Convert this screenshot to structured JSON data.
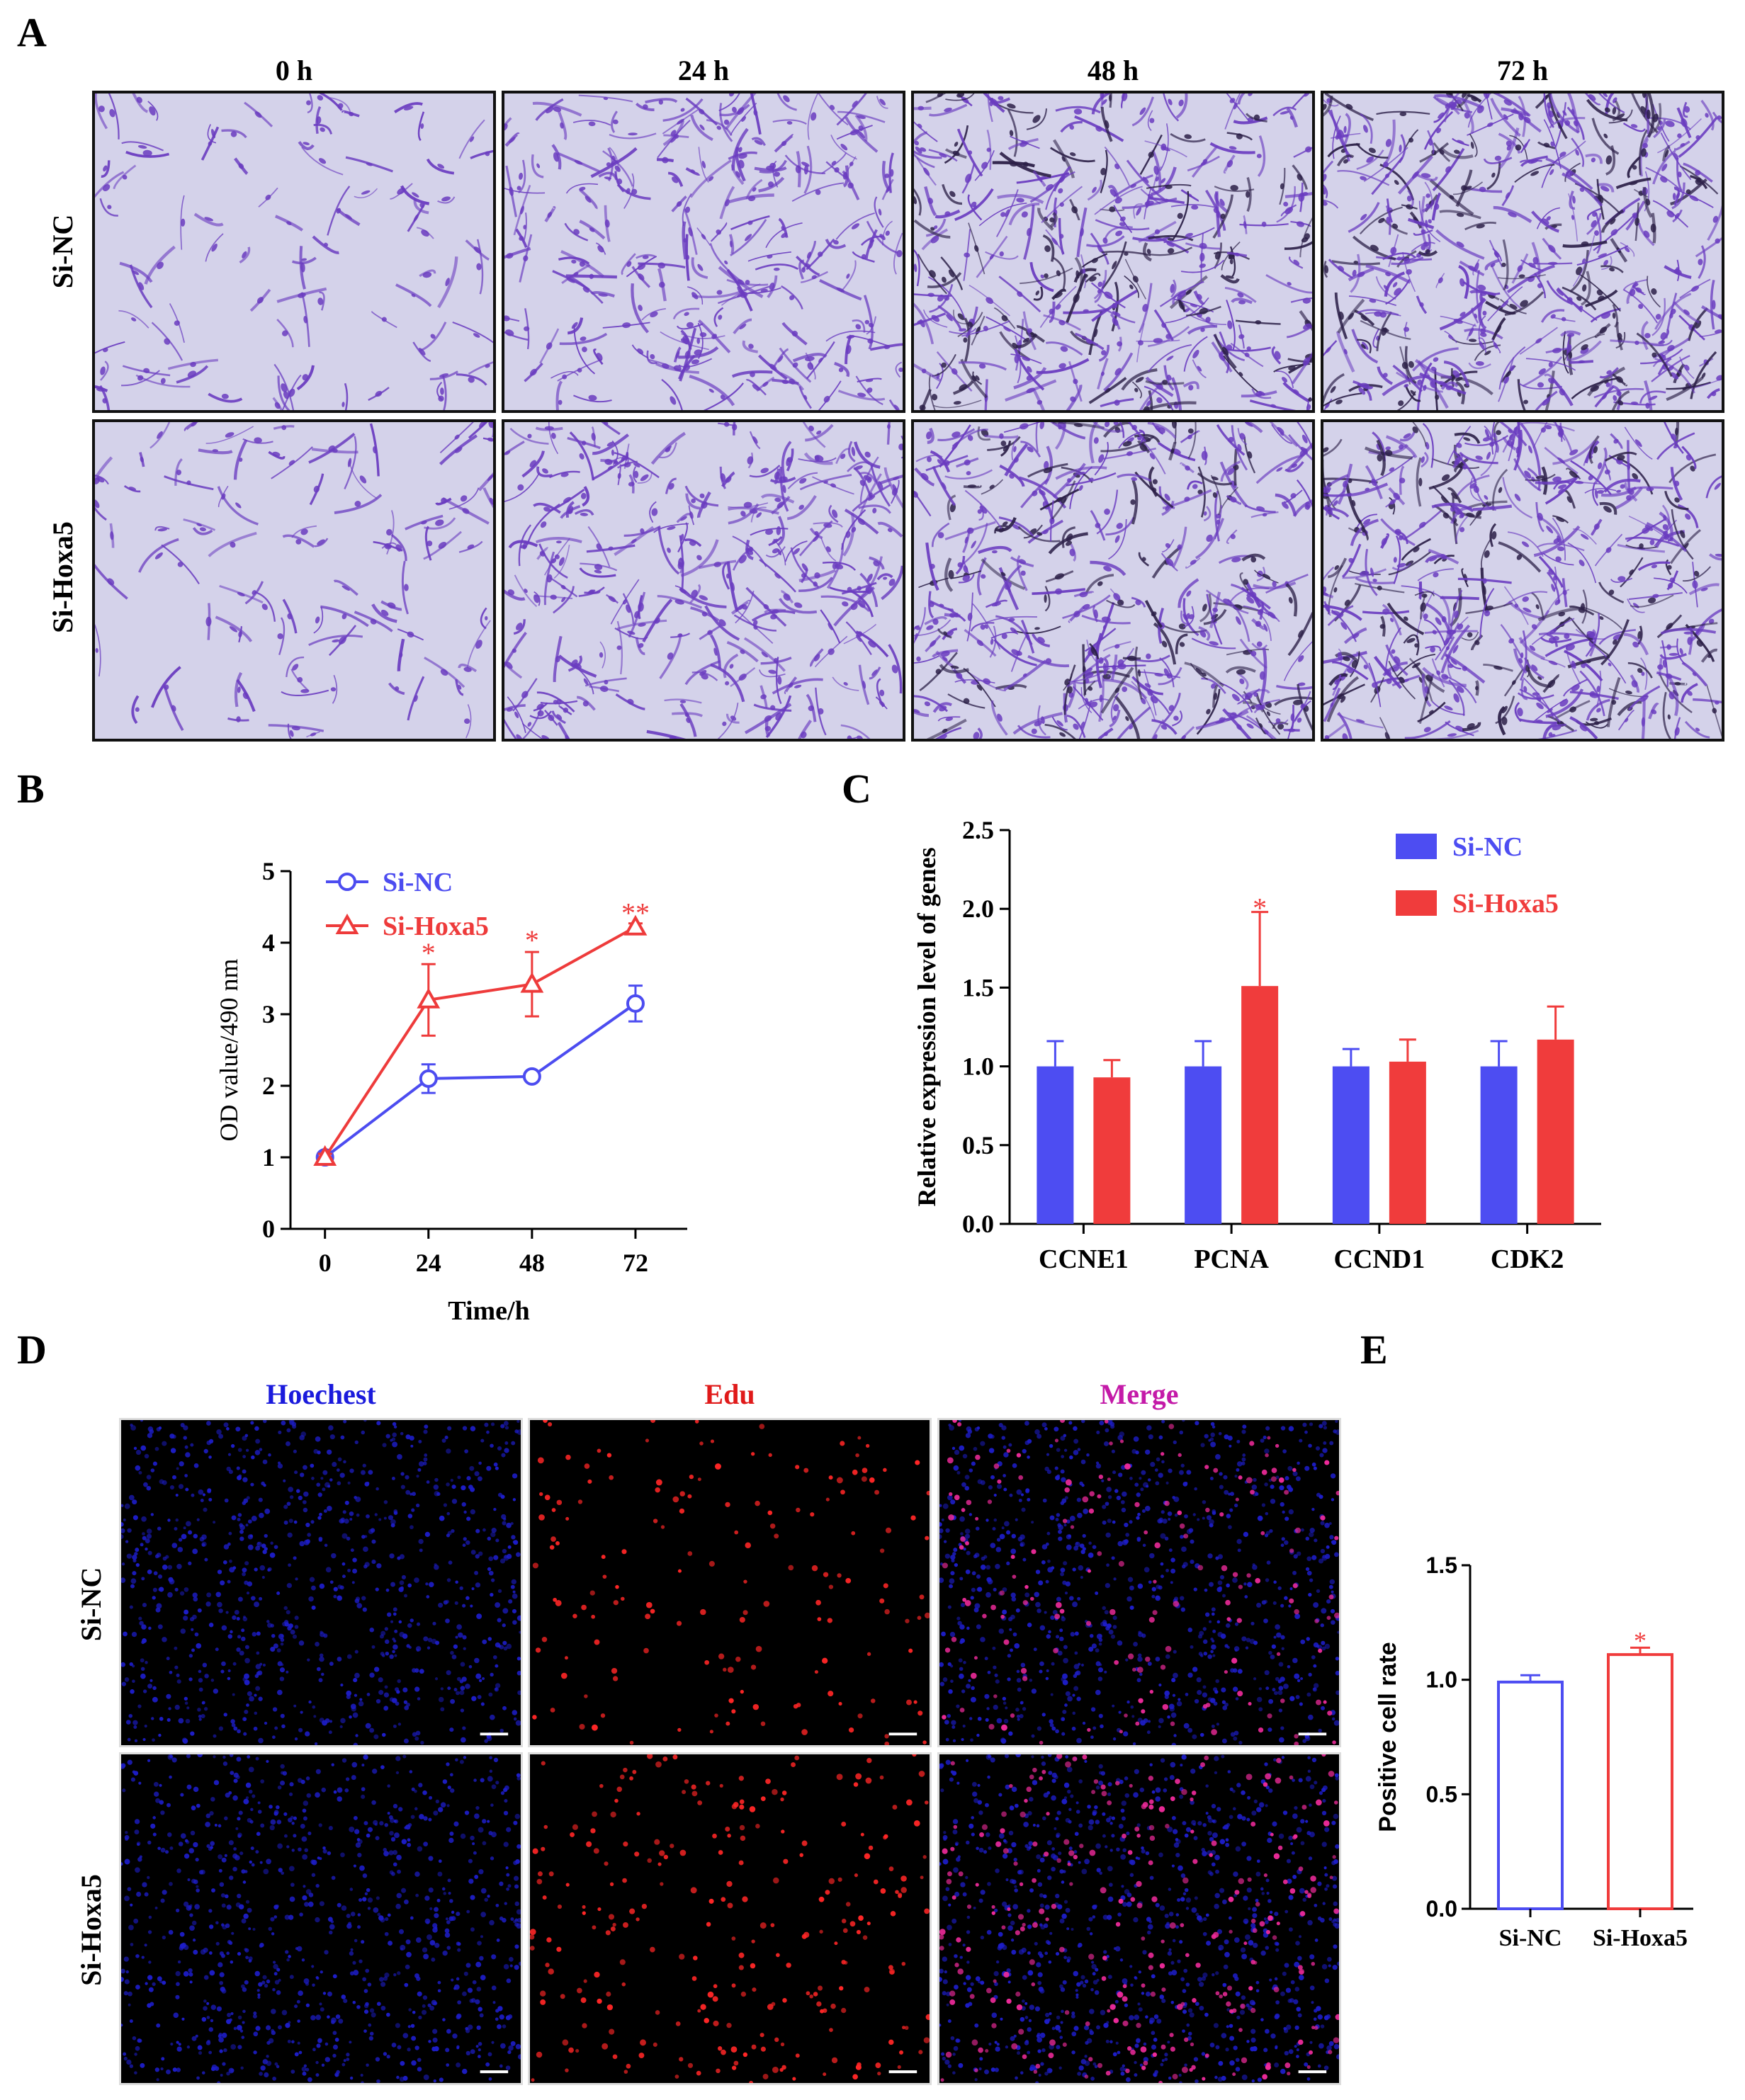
{
  "panels": {
    "A": "A",
    "B": "B",
    "C": "C",
    "D": "D",
    "E": "E"
  },
  "panelA": {
    "columns": [
      "0 h",
      "24 h",
      "48 h",
      "72 h"
    ],
    "rows": [
      "Si-NC",
      "Si-Hoxa5"
    ],
    "density": [
      [
        0.18,
        0.55,
        0.8,
        1.0
      ],
      [
        0.2,
        0.65,
        0.9,
        1.0
      ]
    ],
    "colors": {
      "background": "#d4d2ea",
      "stain": "#6a3cc0",
      "dark_stain": "#2c2048"
    }
  },
  "panelD": {
    "columns": [
      "Hoechest",
      "Edu",
      "Merge"
    ],
    "column_colors": [
      "#1a1adc",
      "#e01a1a",
      "#c41aa8"
    ],
    "rows": [
      "Si-NC",
      "Si-Hoxa5"
    ]
  },
  "chart_data": [
    {
      "id": "B",
      "type": "line",
      "title": "",
      "xlabel": "Time/h",
      "ylabel": "OD value/490 nm",
      "x": [
        0,
        24,
        48,
        72
      ],
      "xlim": [
        -8,
        84
      ],
      "ylim": [
        0,
        5
      ],
      "yticks": [
        0,
        1,
        2,
        3,
        4,
        5
      ],
      "xticks": [
        0,
        24,
        48,
        72
      ],
      "legend_position": "top-left",
      "series": [
        {
          "name": "Si-NC",
          "color": "#4c4cf0",
          "marker": "circle",
          "values": [
            1.0,
            2.1,
            2.13,
            3.15
          ],
          "errors": [
            0.05,
            0.2,
            0.03,
            0.25
          ]
        },
        {
          "name": "Si-Hoxa5",
          "color": "#ee3b3b",
          "marker": "triangle",
          "values": [
            1.0,
            3.2,
            3.42,
            4.22
          ],
          "errors": [
            0.05,
            0.5,
            0.45,
            0.05
          ]
        }
      ],
      "annotations": [
        {
          "x": 24,
          "y": 3.82,
          "text": "*"
        },
        {
          "x": 48,
          "y": 4.0,
          "text": "*"
        },
        {
          "x": 72,
          "y": 4.38,
          "text": "**"
        }
      ]
    },
    {
      "id": "C",
      "type": "bar",
      "title": "",
      "xlabel": "",
      "ylabel": "Relative expression level of genes",
      "categories": [
        "CCNE1",
        "PCNA",
        "CCND1",
        "CDK2"
      ],
      "ylim": [
        0,
        2.5
      ],
      "yticks": [
        "0.0",
        "0.5",
        "1.0",
        "1.5",
        "2.0",
        "2.5"
      ],
      "legend_position": "top-right",
      "series": [
        {
          "name": "Si-NC",
          "color": "#4d4df2",
          "values": [
            1.0,
            1.0,
            1.0,
            1.0
          ],
          "errors": [
            0.16,
            0.16,
            0.11,
            0.16
          ]
        },
        {
          "name": "Si-Hoxa5",
          "color": "#f03c3c",
          "values": [
            0.93,
            1.51,
            1.03,
            1.17
          ],
          "errors": [
            0.11,
            0.47,
            0.14,
            0.21
          ]
        }
      ],
      "annotations": [
        {
          "category": "PCNA",
          "series": "Si-Hoxa5",
          "text": "*"
        }
      ]
    },
    {
      "id": "E",
      "type": "bar",
      "title": "",
      "xlabel": "",
      "ylabel": "Positive cell  rate",
      "categories": [
        "Si-NC",
        "Si-Hoxa5"
      ],
      "values": [
        0.99,
        1.11
      ],
      "errors": [
        0.03,
        0.03
      ],
      "colors": [
        "#4d4df2",
        "#f03c3c"
      ],
      "ylim": [
        0,
        1.5
      ],
      "yticks": [
        "0.0",
        "0.5",
        "1.0",
        "1.5"
      ],
      "annotations": [
        {
          "category": "Si-Hoxa5",
          "text": "*"
        }
      ]
    }
  ]
}
